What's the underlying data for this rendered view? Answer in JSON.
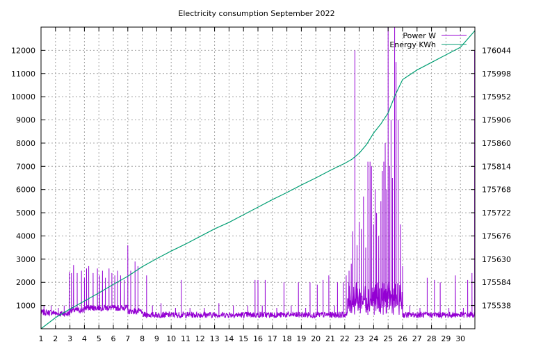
{
  "chart_data": {
    "type": "line",
    "title": "Electricity consumption September 2022",
    "xlim": [
      1,
      31
    ],
    "x_ticks": [
      1,
      2,
      3,
      4,
      5,
      6,
      7,
      8,
      9,
      10,
      11,
      12,
      13,
      14,
      15,
      16,
      17,
      18,
      19,
      20,
      21,
      22,
      23,
      24,
      25,
      26,
      27,
      28,
      29,
      30
    ],
    "y_left": {
      "ylim": [
        0,
        13000
      ],
      "ticks": [
        1000,
        2000,
        3000,
        4000,
        5000,
        6000,
        7000,
        8000,
        9000,
        10000,
        11000,
        12000
      ]
    },
    "y_right": {
      "ylim": [
        175492,
        176090
      ],
      "ticks": [
        175538,
        175584,
        175630,
        175676,
        175722,
        175768,
        175814,
        175860,
        175906,
        175952,
        175998,
        176044
      ]
    },
    "grid": true,
    "legend_position": "top-right",
    "series": [
      {
        "name": "Power W",
        "axis": "left",
        "color": "#9400d3",
        "baseline_ranges": [
          [
            1,
            2,
            700
          ],
          [
            2,
            3,
            650
          ],
          [
            3,
            4,
            800
          ],
          [
            4,
            7,
            900
          ],
          [
            7,
            8,
            750
          ],
          [
            8,
            22.2,
            600
          ],
          [
            22.2,
            26,
            1300
          ],
          [
            26,
            31,
            600
          ]
        ],
        "spikes": [
          [
            1.2,
            1000
          ],
          [
            1.7,
            1000
          ],
          [
            2.2,
            900
          ],
          [
            2.6,
            1000
          ],
          [
            2.95,
            2450
          ],
          [
            3.1,
            2400
          ],
          [
            3.25,
            2750
          ],
          [
            3.5,
            2400
          ],
          [
            3.8,
            2500
          ],
          [
            4.0,
            2200
          ],
          [
            4.15,
            2600
          ],
          [
            4.3,
            2700
          ],
          [
            4.6,
            2400
          ],
          [
            4.9,
            2600
          ],
          [
            5.05,
            2300
          ],
          [
            5.25,
            2500
          ],
          [
            5.45,
            2200
          ],
          [
            5.7,
            2600
          ],
          [
            5.9,
            2400
          ],
          [
            6.1,
            2300
          ],
          [
            6.3,
            2500
          ],
          [
            6.5,
            2300
          ],
          [
            6.75,
            2100
          ],
          [
            7.0,
            3600
          ],
          [
            7.2,
            2500
          ],
          [
            7.5,
            2900
          ],
          [
            7.7,
            2700
          ],
          [
            8.3,
            2300
          ],
          [
            8.7,
            1000
          ],
          [
            9.3,
            1100
          ],
          [
            10.3,
            900
          ],
          [
            10.7,
            2100
          ],
          [
            11.3,
            900
          ],
          [
            12.3,
            900
          ],
          [
            13.3,
            1100
          ],
          [
            14.3,
            1000
          ],
          [
            15.3,
            1000
          ],
          [
            15.8,
            2100
          ],
          [
            16.0,
            2100
          ],
          [
            16.3,
            1000
          ],
          [
            16.5,
            2100
          ],
          [
            17.3,
            900
          ],
          [
            17.8,
            2000
          ],
          [
            18.3,
            1000
          ],
          [
            18.8,
            2000
          ],
          [
            19.3,
            900
          ],
          [
            19.6,
            2000
          ],
          [
            20.1,
            1900
          ],
          [
            20.5,
            2100
          ],
          [
            20.9,
            2300
          ],
          [
            21.3,
            1000
          ],
          [
            21.5,
            2000
          ],
          [
            21.9,
            2000
          ],
          [
            22.1,
            2300
          ],
          [
            22.3,
            2500
          ],
          [
            22.45,
            2800
          ],
          [
            22.55,
            4200
          ],
          [
            22.7,
            12000
          ],
          [
            22.85,
            3600
          ],
          [
            23.0,
            4600
          ],
          [
            23.15,
            4300
          ],
          [
            23.3,
            5700
          ],
          [
            23.45,
            3500
          ],
          [
            23.6,
            7200
          ],
          [
            23.75,
            7200
          ],
          [
            23.85,
            7000
          ],
          [
            24.0,
            4500
          ],
          [
            24.1,
            6000
          ],
          [
            24.2,
            5000
          ],
          [
            24.35,
            4000
          ],
          [
            24.5,
            5500
          ],
          [
            24.6,
            6800
          ],
          [
            24.7,
            7200
          ],
          [
            24.8,
            8000
          ],
          [
            24.9,
            6000
          ],
          [
            25.0,
            13000
          ],
          [
            25.1,
            7000
          ],
          [
            25.2,
            9000
          ],
          [
            25.3,
            6500
          ],
          [
            25.45,
            13000
          ],
          [
            25.55,
            11500
          ],
          [
            25.7,
            9000
          ],
          [
            25.85,
            4500
          ],
          [
            26.0,
            2700
          ],
          [
            26.5,
            1000
          ],
          [
            27.2,
            900
          ],
          [
            27.7,
            2200
          ],
          [
            28.2,
            2100
          ],
          [
            28.6,
            2000
          ],
          [
            29.2,
            900
          ],
          [
            29.65,
            2300
          ],
          [
            30.2,
            900
          ],
          [
            30.5,
            2100
          ],
          [
            30.8,
            2400
          ],
          [
            30.98,
            12000
          ]
        ]
      },
      {
        "name": "Energy KWh",
        "axis": "right",
        "color": "#009e73",
        "x": [
          1,
          2,
          3,
          4,
          5,
          6,
          7,
          8,
          9,
          10,
          11,
          12,
          13,
          14,
          15,
          16,
          17,
          18,
          19,
          20,
          21,
          22,
          22.5,
          23,
          23.5,
          24,
          24.5,
          25,
          25.5,
          26,
          27,
          28,
          29,
          30,
          31
        ],
        "y": [
          175492,
          175514,
          175531,
          175547,
          175563,
          175580,
          175596,
          175615,
          175631,
          175646,
          175660,
          175675,
          175690,
          175703,
          175718,
          175733,
          175748,
          175762,
          175777,
          175791,
          175806,
          175820,
          175828,
          175840,
          175857,
          175880,
          175898,
          175920,
          175956,
          175986,
          176005,
          176020,
          176035,
          176050,
          176083
        ]
      }
    ]
  }
}
